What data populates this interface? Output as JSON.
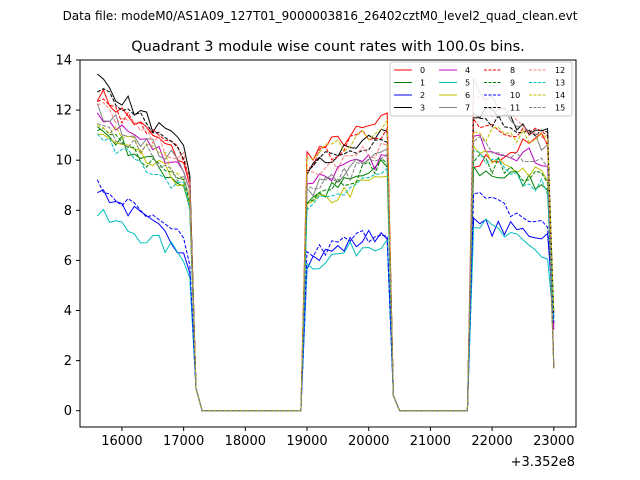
{
  "figure": {
    "suptitle": "Data file: modeM0/AS1A09_127T01_9000003816_26402cztM0_level2_quad_clean.evt",
    "title": "Quadrant 3 module wise count rates with 100.0s bins.",
    "offset_label": "+3.352e8"
  },
  "chart_data": {
    "type": "line",
    "title": "Quadrant 3 module wise count rates with 100.0s bins.",
    "xlabel": "",
    "ylabel": "",
    "x_offset_label": "+3.352e8",
    "xlim": [
      15320,
      23360
    ],
    "ylim": [
      -0.65,
      14.0
    ],
    "xticks": [
      16000,
      17000,
      18000,
      19000,
      20000,
      21000,
      22000,
      23000
    ],
    "xtick_labels": [
      "16000",
      "17000",
      "18000",
      "19000",
      "20000",
      "21000",
      "22000",
      "23000"
    ],
    "yticks": [
      0,
      2,
      4,
      6,
      8,
      10,
      12,
      14
    ],
    "ytick_labels": [
      "0",
      "2",
      "4",
      "6",
      "8",
      "10",
      "12",
      "14"
    ],
    "grid": false,
    "legend_position": "top-right",
    "segments": [
      {
        "start": 15600,
        "end": 17100,
        "n": 16
      },
      {
        "start": 17200,
        "end": 18900,
        "n": 18,
        "gap": true
      },
      {
        "start": 19000,
        "end": 20300,
        "n": 14
      },
      {
        "start": 20400,
        "end": 21600,
        "n": 13,
        "gap": true
      },
      {
        "start": 21700,
        "end": 23000,
        "n": 14
      }
    ],
    "series": [
      {
        "name": "0",
        "color": "#ff0000",
        "dash": false,
        "level": [
          12.7,
          9.8,
          10.2,
          11.6,
          9.8,
          11.0
        ]
      },
      {
        "name": "1",
        "color": "#008000",
        "dash": false,
        "level": [
          11.3,
          8.9,
          8.4,
          9.8,
          9.6,
          9.0
        ]
      },
      {
        "name": "2",
        "color": "#0000ff",
        "dash": false,
        "level": [
          8.9,
          6.3,
          6.0,
          7.2,
          7.4,
          7.0
        ]
      },
      {
        "name": "3",
        "color": "#000000",
        "dash": false,
        "level": [
          13.3,
          10.2,
          9.6,
          11.2,
          11.9,
          11.0
        ]
      },
      {
        "name": "4",
        "color": "#bf00bf",
        "dash": false,
        "level": [
          11.9,
          9.6,
          9.2,
          10.1,
          10.8,
          9.9
        ]
      },
      {
        "name": "5",
        "color": "#00bfbf",
        "dash": false,
        "level": [
          7.8,
          6.1,
          5.8,
          6.9,
          7.6,
          6.0
        ]
      },
      {
        "name": "6",
        "color": "#bfbf00",
        "dash": false,
        "level": [
          11.0,
          9.0,
          8.1,
          9.4,
          10.3,
          9.2
        ]
      },
      {
        "name": "7",
        "color": "#808080",
        "dash": false,
        "level": [
          12.0,
          9.6,
          8.8,
          10.3,
          13.2,
          10.1
        ]
      },
      {
        "name": "8",
        "color": "#ff0000",
        "dash": true,
        "level": [
          12.4,
          10.0,
          9.9,
          11.3,
          11.6,
          10.9
        ]
      },
      {
        "name": "9",
        "color": "#008000",
        "dash": true,
        "level": [
          11.1,
          9.1,
          8.6,
          10.0,
          10.0,
          9.2
        ]
      },
      {
        "name": "10",
        "color": "#0000ff",
        "dash": true,
        "level": [
          9.0,
          6.6,
          6.2,
          7.3,
          8.6,
          7.2
        ]
      },
      {
        "name": "11",
        "color": "#000000",
        "dash": true,
        "level": [
          12.9,
          10.1,
          9.8,
          11.0,
          11.8,
          11.0
        ]
      },
      {
        "name": "12",
        "color": "#ff7f7f",
        "dash": true,
        "level": [
          12.2,
          9.9,
          9.4,
          10.6,
          12.5,
          10.6
        ]
      },
      {
        "name": "13",
        "color": "#00bfbf",
        "dash": true,
        "level": [
          10.8,
          8.8,
          8.3,
          9.6,
          10.1,
          8.8
        ]
      },
      {
        "name": "14",
        "color": "#bfbf00",
        "dash": true,
        "level": [
          11.6,
          9.4,
          10.1,
          11.4,
          11.0,
          10.9
        ]
      },
      {
        "name": "15",
        "color": "#808080",
        "dash": true,
        "level": [
          11.5,
          9.2,
          9.0,
          10.0,
          10.9,
          9.8
        ]
      }
    ]
  }
}
